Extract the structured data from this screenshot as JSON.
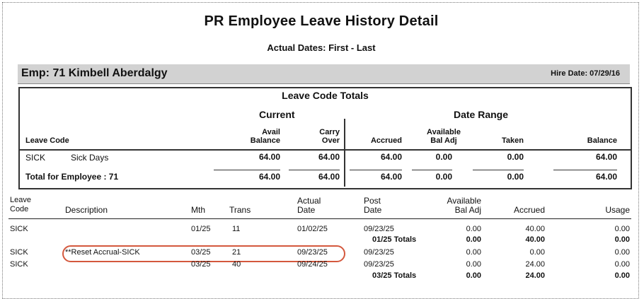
{
  "report": {
    "title": "PR Employee Leave History Detail",
    "subtitle": "Actual Dates: First  -  Last"
  },
  "employee": {
    "label": "Emp: 71  Kimbell Aberdalgy",
    "hire_date": "Hire Date: 07/29/16"
  },
  "totals": {
    "heading": "Leave Code Totals",
    "group_current": "Current",
    "group_range": "Date Range",
    "col_leave_code": "Leave Code",
    "col_avail_balance": [
      "Avail",
      "Balance"
    ],
    "col_carry_over": [
      "Carry",
      "Over"
    ],
    "col_accrued": "Accrued",
    "col_available_bal_adj": [
      "Available",
      "Bal Adj"
    ],
    "col_taken": "Taken",
    "col_balance": "Balance",
    "row": {
      "code": "SICK",
      "desc": "Sick Days",
      "avail_balance": "64.00",
      "carry_over": "64.00",
      "accrued": "64.00",
      "bal_adj": "0.00",
      "taken": "0.00",
      "balance": "64.00"
    },
    "total_row": {
      "label": "Total for Employee : 71",
      "avail_balance": "64.00",
      "carry_over": "64.00",
      "accrued": "64.00",
      "bal_adj": "0.00",
      "taken": "0.00",
      "balance": "64.00"
    }
  },
  "detail": {
    "headers": {
      "leave_code": [
        "Leave",
        "Code"
      ],
      "description": "Description",
      "mth": "Mth",
      "trans": "Trans",
      "actual_date": [
        "Actual",
        "Date"
      ],
      "post_date": [
        "Post",
        "Date"
      ],
      "available_bal_adj": [
        "Available",
        "Bal Adj"
      ],
      "accrued": "Accrued",
      "usage": "Usage"
    },
    "rows": [
      {
        "code": "SICK",
        "desc": "",
        "mth": "01/25",
        "trans": "11",
        "actual": "01/02/25",
        "post": "09/23/25",
        "baladj": "0.00",
        "accrued": "40.00",
        "usage": "0.00"
      },
      {
        "subtotal": "01/25 Totals",
        "baladj": "0.00",
        "accrued": "40.00",
        "usage": "0.00"
      },
      {
        "code": "SICK",
        "desc": "**Reset Accrual-SICK",
        "mth": "03/25",
        "trans": "21",
        "actual": "09/23/25",
        "post": "09/23/25",
        "baladj": "0.00",
        "accrued": "0.00",
        "usage": "0.00"
      },
      {
        "code": "SICK",
        "desc": "",
        "mth": "03/25",
        "trans": "40",
        "actual": "09/24/25",
        "post": "09/23/25",
        "baladj": "0.00",
        "accrued": "24.00",
        "usage": "0.00"
      },
      {
        "subtotal": "03/25 Totals",
        "baladj": "0.00",
        "accrued": "24.00",
        "usage": "0.00"
      }
    ]
  },
  "highlight_color": "#d4583d"
}
